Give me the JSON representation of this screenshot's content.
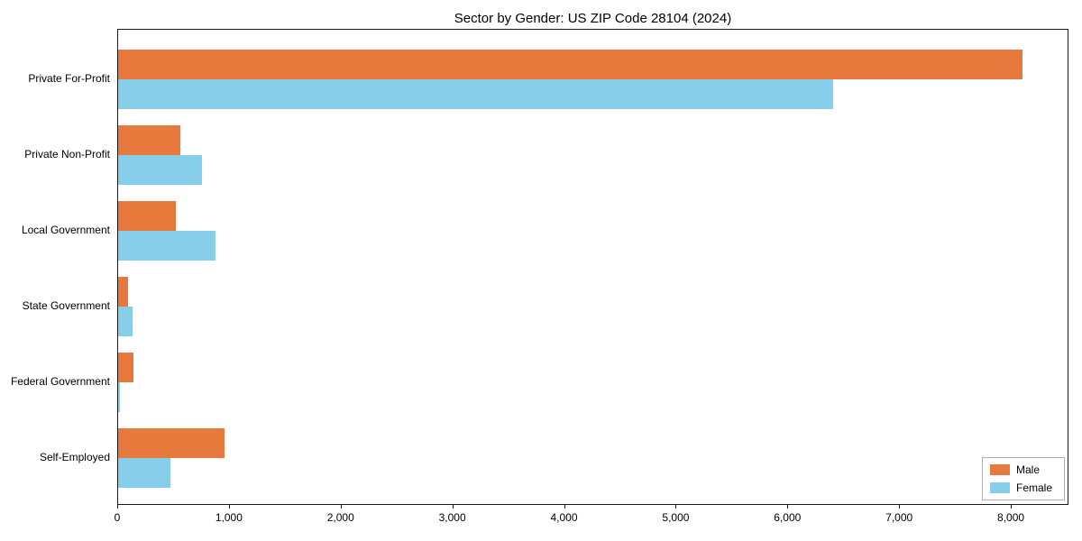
{
  "chart_data": {
    "type": "bar",
    "orientation": "horizontal",
    "title": "Sector by Gender: US ZIP Code 28104 (2024)",
    "categories": [
      "Private For-Profit",
      "Private Non-Profit",
      "Local Government",
      "State Government",
      "Federal Government",
      "Self-Employed"
    ],
    "series": [
      {
        "name": "Male",
        "color": "#e8793d",
        "values": [
          8100,
          560,
          520,
          85,
          140,
          950
        ]
      },
      {
        "name": "Female",
        "color": "#87ceeb",
        "values": [
          6400,
          750,
          870,
          130,
          20,
          470
        ]
      }
    ],
    "xlim": [
      0,
      8500
    ],
    "xticks": [
      0,
      1000,
      2000,
      3000,
      4000,
      5000,
      6000,
      7000,
      8000
    ],
    "xtick_labels": [
      "0",
      "1,000",
      "2,000",
      "3,000",
      "4,000",
      "5,000",
      "6,000",
      "7,000",
      "8,000"
    ],
    "legend": {
      "position": "lower right",
      "entries": [
        "Male",
        "Female"
      ]
    },
    "grid": false,
    "background": "#ffffff"
  }
}
